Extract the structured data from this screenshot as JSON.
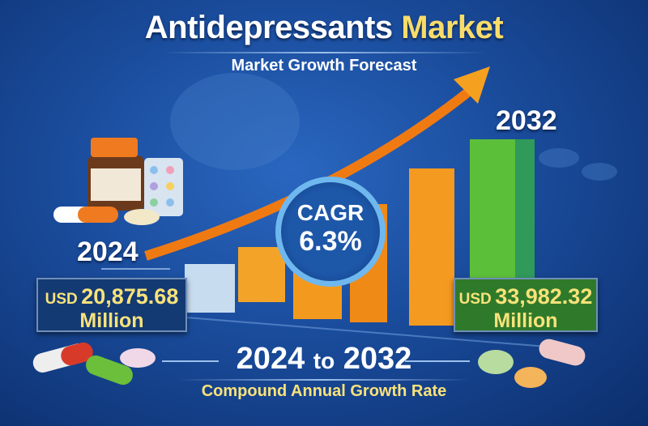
{
  "title": {
    "main": "Antidepressants",
    "highlight": "Market"
  },
  "subtitle": "Market Growth Forecast",
  "start": {
    "year": "2024",
    "currency": "USD",
    "value": "20,875.68",
    "unit": "Million"
  },
  "end": {
    "year": "2032",
    "currency": "USD",
    "value": "33,982.32",
    "unit": "Million"
  },
  "cagr": {
    "label": "CAGR",
    "value": "6.3%"
  },
  "period": {
    "from": "2024",
    "to_word": "to",
    "to": "2032"
  },
  "period_caption": "Compound Annual Growth Rate",
  "colors": {
    "background": "#1a4c9c",
    "accent_yellow": "#f8e27a",
    "bar_orange": "#f39a1e",
    "bar_green": "#5cbf3a",
    "arrow": "#f07a12"
  }
}
